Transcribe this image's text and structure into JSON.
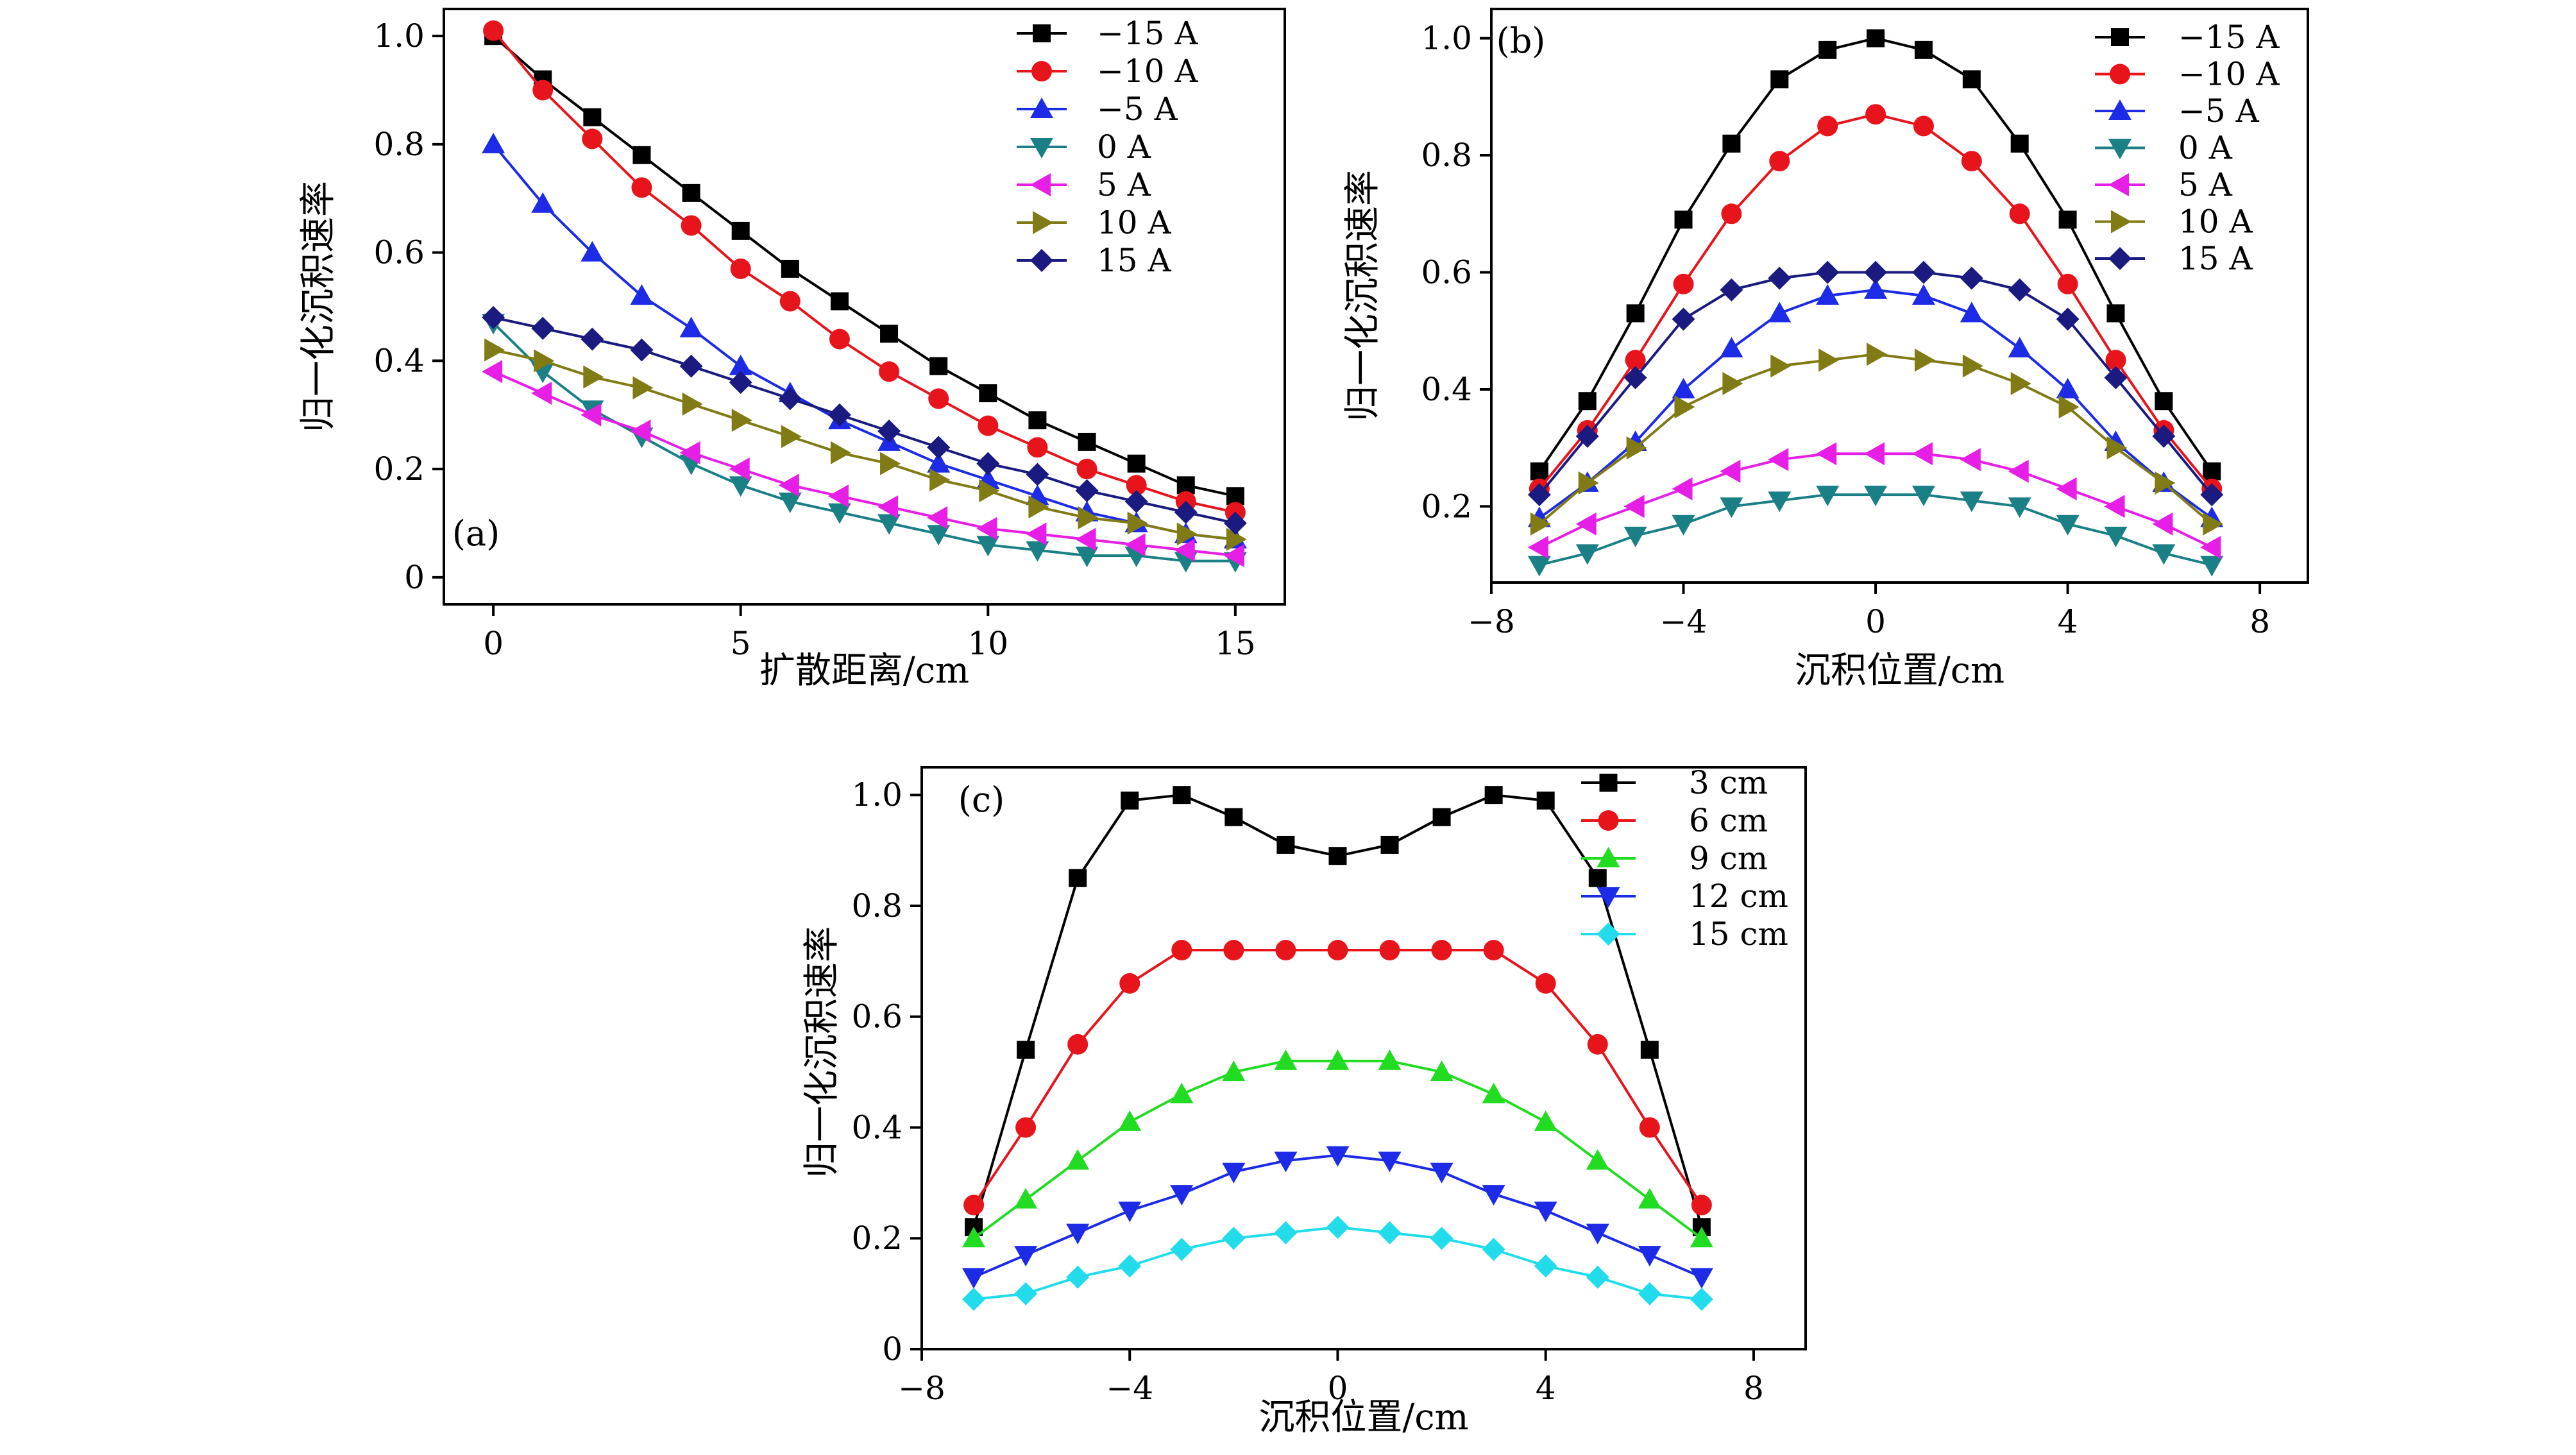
{
  "colors": {
    "black": "#000000",
    "red": "#e8141c",
    "blue": "#1d2be6",
    "teal": "#1b7f86",
    "magenta": "#e61ee6",
    "olive": "#807b14",
    "navy": "#1a1a80",
    "green": "#22dc22",
    "cyan": "#22dcec"
  },
  "chart_data": [
    {
      "panel_label": "(a)",
      "type": "line",
      "xlabel": "扩散距离/cm",
      "ylabel": "归一化沉积速率",
      "xlim": [
        -1,
        16
      ],
      "ylim": [
        -0.05,
        1.05
      ],
      "xticks": [
        0,
        5,
        10,
        15
      ],
      "xtick_labels": [
        "0",
        "5",
        "10",
        "15"
      ],
      "yticks": [
        0,
        0.2,
        0.4,
        0.6,
        0.8,
        1.0
      ],
      "ytick_labels": [
        "0",
        "0.2",
        "0.4",
        "0.6",
        "0.8",
        "1.0"
      ],
      "legend_position": "top-right",
      "x": [
        0,
        1,
        2,
        3,
        4,
        5,
        6,
        7,
        8,
        9,
        10,
        11,
        12,
        13,
        14,
        15
      ],
      "series": [
        {
          "name": "−15 A",
          "color": "#000000",
          "marker": "square",
          "values": [
            1.0,
            0.92,
            0.85,
            0.78,
            0.71,
            0.64,
            0.57,
            0.51,
            0.45,
            0.39,
            0.34,
            0.29,
            0.25,
            0.21,
            0.17,
            0.15
          ]
        },
        {
          "name": "−10 A",
          "color": "#e8141c",
          "marker": "circle",
          "values": [
            1.01,
            0.9,
            0.81,
            0.72,
            0.65,
            0.57,
            0.51,
            0.44,
            0.38,
            0.33,
            0.28,
            0.24,
            0.2,
            0.17,
            0.14,
            0.12
          ]
        },
        {
          "name": "−5 A",
          "color": "#1d2be6",
          "marker": "triangle-up",
          "values": [
            0.8,
            0.69,
            0.6,
            0.52,
            0.46,
            0.39,
            0.34,
            0.29,
            0.25,
            0.21,
            0.18,
            0.15,
            0.12,
            0.1,
            0.08,
            0.07
          ]
        },
        {
          "name": "0 A",
          "color": "#1b7f86",
          "marker": "triangle-down",
          "values": [
            0.47,
            0.38,
            0.31,
            0.26,
            0.21,
            0.17,
            0.14,
            0.12,
            0.1,
            0.08,
            0.06,
            0.05,
            0.04,
            0.04,
            0.03,
            0.03
          ]
        },
        {
          "name": "5 A",
          "color": "#e61ee6",
          "marker": "triangle-left",
          "values": [
            0.38,
            0.34,
            0.3,
            0.27,
            0.23,
            0.2,
            0.17,
            0.15,
            0.13,
            0.11,
            0.09,
            0.08,
            0.07,
            0.06,
            0.05,
            0.04
          ]
        },
        {
          "name": "10 A",
          "color": "#807b14",
          "marker": "triangle-right",
          "values": [
            0.42,
            0.4,
            0.37,
            0.35,
            0.32,
            0.29,
            0.26,
            0.23,
            0.21,
            0.18,
            0.16,
            0.13,
            0.11,
            0.1,
            0.08,
            0.07
          ]
        },
        {
          "name": "15 A",
          "color": "#1a1a80",
          "marker": "diamond",
          "values": [
            0.48,
            0.46,
            0.44,
            0.42,
            0.39,
            0.36,
            0.33,
            0.3,
            0.27,
            0.24,
            0.21,
            0.19,
            0.16,
            0.14,
            0.12,
            0.1
          ]
        }
      ]
    },
    {
      "panel_label": "(b)",
      "type": "line",
      "xlabel": "沉积位置/cm",
      "ylabel": "归一化沉积速率",
      "xlim": [
        -8,
        9
      ],
      "ylim": [
        0.07,
        1.05
      ],
      "xticks": [
        -8,
        -4,
        0,
        4,
        8
      ],
      "xtick_labels": [
        "−8",
        "−4",
        "0",
        "4",
        "8"
      ],
      "yticks": [
        0.2,
        0.4,
        0.6,
        0.8,
        1.0
      ],
      "ytick_labels": [
        "0.2",
        "0.4",
        "0.6",
        "0.8",
        "1.0"
      ],
      "legend_position": "top-right",
      "x": [
        -7,
        -6,
        -5,
        -4,
        -3,
        -2,
        -1,
        0,
        1,
        2,
        3,
        4,
        5,
        6,
        7
      ],
      "series": [
        {
          "name": "−15 A",
          "color": "#000000",
          "marker": "square",
          "values": [
            0.26,
            0.38,
            0.53,
            0.69,
            0.82,
            0.93,
            0.98,
            1.0,
            0.98,
            0.93,
            0.82,
            0.69,
            0.53,
            0.38,
            0.26
          ]
        },
        {
          "name": "−10 A",
          "color": "#e8141c",
          "marker": "circle",
          "values": [
            0.23,
            0.33,
            0.45,
            0.58,
            0.7,
            0.79,
            0.85,
            0.87,
            0.85,
            0.79,
            0.7,
            0.58,
            0.45,
            0.33,
            0.23
          ]
        },
        {
          "name": "−5 A",
          "color": "#1d2be6",
          "marker": "triangle-up",
          "values": [
            0.18,
            0.24,
            0.31,
            0.4,
            0.47,
            0.53,
            0.56,
            0.57,
            0.56,
            0.53,
            0.47,
            0.4,
            0.31,
            0.24,
            0.18
          ]
        },
        {
          "name": "0 A",
          "color": "#1b7f86",
          "marker": "triangle-down",
          "values": [
            0.1,
            0.12,
            0.15,
            0.17,
            0.2,
            0.21,
            0.22,
            0.22,
            0.22,
            0.21,
            0.2,
            0.17,
            0.15,
            0.12,
            0.1
          ]
        },
        {
          "name": "5 A",
          "color": "#e61ee6",
          "marker": "triangle-left",
          "values": [
            0.13,
            0.17,
            0.2,
            0.23,
            0.26,
            0.28,
            0.29,
            0.29,
            0.29,
            0.28,
            0.26,
            0.23,
            0.2,
            0.17,
            0.13
          ]
        },
        {
          "name": "10 A",
          "color": "#807b14",
          "marker": "triangle-right",
          "values": [
            0.17,
            0.24,
            0.3,
            0.37,
            0.41,
            0.44,
            0.45,
            0.46,
            0.45,
            0.44,
            0.41,
            0.37,
            0.3,
            0.24,
            0.17
          ]
        },
        {
          "name": "15 A",
          "color": "#1a1a80",
          "marker": "diamond",
          "values": [
            0.22,
            0.32,
            0.42,
            0.52,
            0.57,
            0.59,
            0.6,
            0.6,
            0.6,
            0.59,
            0.57,
            0.52,
            0.42,
            0.32,
            0.22
          ]
        }
      ]
    },
    {
      "panel_label": "(c)",
      "type": "line",
      "xlabel": "沉积位置/cm",
      "ylabel": "归一化沉积速率",
      "xlim": [
        -8,
        9
      ],
      "ylim": [
        0.0,
        1.05
      ],
      "xticks": [
        -8,
        -4,
        0,
        4,
        8
      ],
      "xtick_labels": [
        "−8",
        "−4",
        "0",
        "4",
        "8"
      ],
      "yticks": [
        0,
        0.2,
        0.4,
        0.6,
        0.8,
        1.0
      ],
      "ytick_labels": [
        "0",
        "0.2",
        "0.4",
        "0.6",
        "0.8",
        "1.0"
      ],
      "legend_position": "top-right",
      "x": [
        -7,
        -6,
        -5,
        -4,
        -3,
        -2,
        -1,
        0,
        1,
        2,
        3,
        4,
        5,
        6,
        7
      ],
      "series": [
        {
          "name": "3 cm",
          "color": "#000000",
          "marker": "square",
          "values": [
            0.22,
            0.54,
            0.85,
            0.99,
            1.0,
            0.96,
            0.91,
            0.89,
            0.91,
            0.96,
            1.0,
            0.99,
            0.85,
            0.54,
            0.22
          ]
        },
        {
          "name": "6 cm",
          "color": "#e8141c",
          "marker": "circle",
          "values": [
            0.26,
            0.4,
            0.55,
            0.66,
            0.72,
            0.72,
            0.72,
            0.72,
            0.72,
            0.72,
            0.72,
            0.66,
            0.55,
            0.4,
            0.26
          ]
        },
        {
          "name": "9 cm",
          "color": "#22dc22",
          "marker": "triangle-up",
          "values": [
            0.2,
            0.27,
            0.34,
            0.41,
            0.46,
            0.5,
            0.52,
            0.52,
            0.52,
            0.5,
            0.46,
            0.41,
            0.34,
            0.27,
            0.2
          ]
        },
        {
          "name": "12 cm",
          "color": "#1d2be6",
          "marker": "triangle-down",
          "values": [
            0.13,
            0.17,
            0.21,
            0.25,
            0.28,
            0.32,
            0.34,
            0.35,
            0.34,
            0.32,
            0.28,
            0.25,
            0.21,
            0.17,
            0.13
          ]
        },
        {
          "name": "15 cm",
          "color": "#22dcec",
          "marker": "diamond",
          "values": [
            0.09,
            0.1,
            0.13,
            0.15,
            0.18,
            0.2,
            0.21,
            0.22,
            0.21,
            0.2,
            0.18,
            0.15,
            0.13,
            0.1,
            0.09
          ]
        }
      ]
    }
  ]
}
